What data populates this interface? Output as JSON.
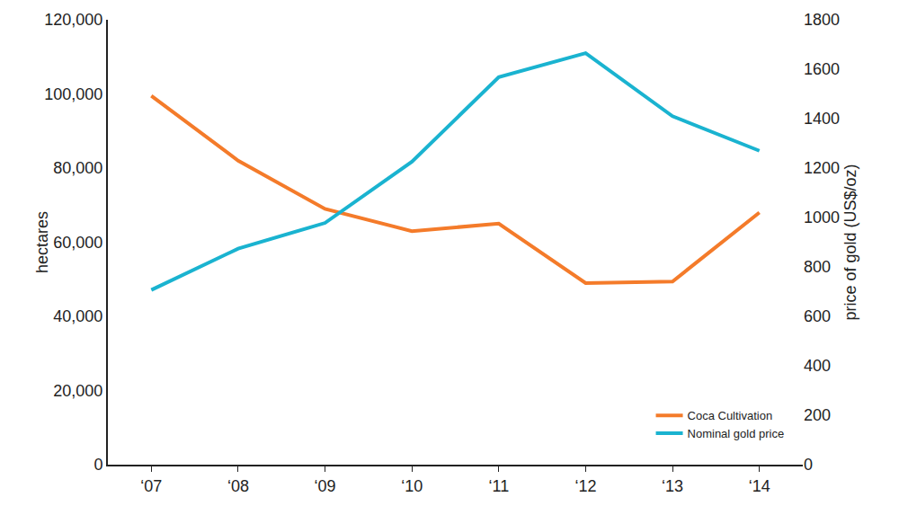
{
  "chart_data": {
    "type": "line",
    "categories": [
      "‘07",
      "‘08",
      "‘09",
      "‘10",
      "‘11",
      "‘12",
      "‘13",
      "‘14"
    ],
    "y_label": "hectares",
    "y2_label": "price of gold (US$/oz)",
    "ylim": [
      0,
      120000
    ],
    "yticks": [
      0,
      {
        "value": 20000,
        "label": "20,000"
      },
      {
        "value": 40000,
        "label": "40,000"
      },
      {
        "value": 60000,
        "label": "60,000"
      },
      {
        "value": 80000,
        "label": "80,000"
      },
      {
        "value": 100000,
        "label": "100,000"
      },
      {
        "value": 120000,
        "label": "120,000"
      }
    ],
    "y2lim": [
      0,
      1800
    ],
    "y2ticks": [
      0,
      200,
      400,
      600,
      800,
      1000,
      1200,
      1400,
      1600,
      1800
    ],
    "grid": false,
    "legend": "lower right",
    "series": [
      {
        "name": "Coca Cultivation",
        "color": "#f47b2a",
        "marker": "circle",
        "values": [
          99500,
          82000,
          69000,
          63000,
          65000,
          49000,
          49400,
          68000
        ]
      },
      {
        "name": "Nominal gold price",
        "color": "#1ab3d0",
        "marker": "circle",
        "axis": "y2",
        "values": [
          707,
          874,
          978,
          1226,
          1568,
          1665,
          1410,
          1270
        ]
      }
    ]
  }
}
